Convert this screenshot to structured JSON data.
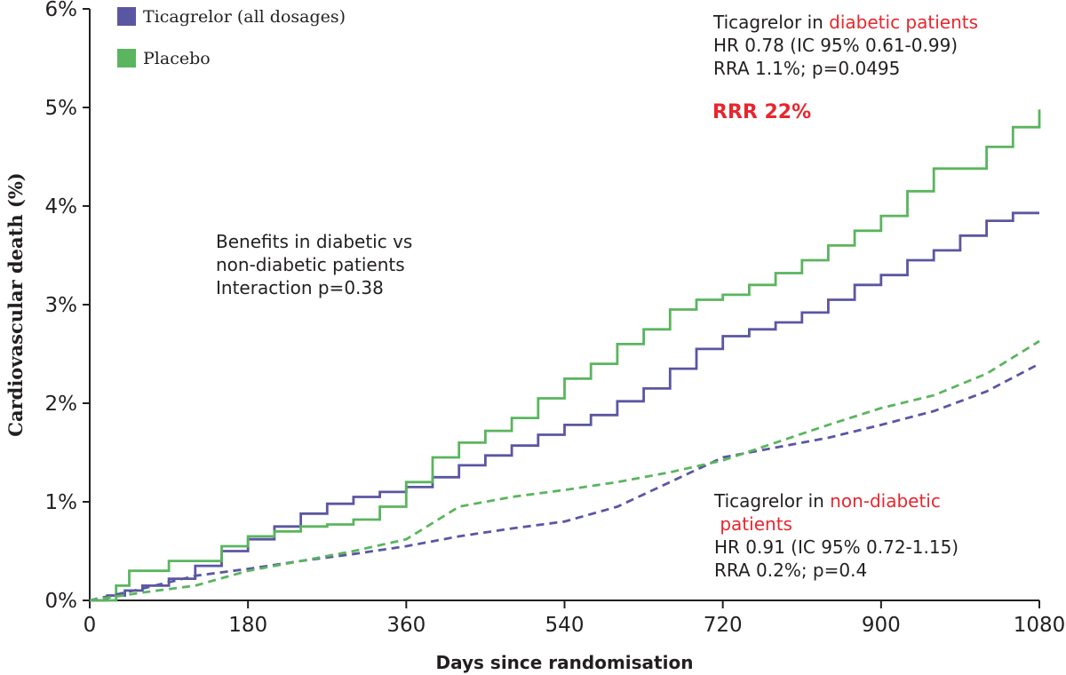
{
  "chart_data": {
    "type": "line",
    "title": "",
    "xlabel": "Days since randomisation",
    "ylabel": "Cardiovascular death (%)",
    "xlim": [
      0,
      1080
    ],
    "ylim": [
      0,
      6
    ],
    "x_ticks": [
      0,
      180,
      360,
      540,
      720,
      900,
      1080
    ],
    "x_tick_labels": [
      "0",
      "180",
      "360",
      "540",
      "720",
      "900",
      "1080"
    ],
    "y_ticks": [
      0,
      1,
      2,
      3,
      4,
      5,
      6
    ],
    "y_tick_labels": [
      "0%",
      "1%",
      "2%",
      "3%",
      "4%",
      "5%",
      "6%"
    ],
    "grid": false,
    "legend": {
      "position": "top-left",
      "entries": [
        {
          "label": "Ticagrelor (all dosages)",
          "color": "#5b56a2"
        },
        {
          "label": "Placebo",
          "color": "#5ab55e"
        }
      ]
    },
    "series": [
      {
        "name": "Ticagrelor (all dosages)",
        "group": "diabetic patients",
        "color": "#5b56a2",
        "style": "solid",
        "step": true,
        "x": [
          0,
          20,
          40,
          60,
          90,
          120,
          150,
          180,
          210,
          240,
          270,
          300,
          330,
          360,
          390,
          420,
          450,
          480,
          510,
          540,
          570,
          600,
          630,
          660,
          690,
          720,
          750,
          780,
          810,
          840,
          870,
          900,
          930,
          960,
          990,
          1020,
          1050,
          1080
        ],
        "y": [
          0,
          0.05,
          0.1,
          0.15,
          0.22,
          0.35,
          0.5,
          0.62,
          0.75,
          0.88,
          0.98,
          1.05,
          1.1,
          1.15,
          1.25,
          1.37,
          1.47,
          1.57,
          1.68,
          1.78,
          1.88,
          2.02,
          2.15,
          2.35,
          2.55,
          2.68,
          2.75,
          2.82,
          2.92,
          3.05,
          3.2,
          3.3,
          3.45,
          3.55,
          3.7,
          3.85,
          3.93,
          3.93
        ]
      },
      {
        "name": "Placebo",
        "group": "diabetic patients",
        "color": "#5ab55e",
        "style": "solid",
        "step": true,
        "x": [
          0,
          30,
          45,
          90,
          150,
          180,
          210,
          240,
          270,
          300,
          330,
          360,
          390,
          420,
          450,
          480,
          510,
          540,
          570,
          600,
          630,
          660,
          690,
          720,
          750,
          780,
          810,
          840,
          870,
          900,
          930,
          960,
          990,
          1020,
          1050,
          1080
        ],
        "y": [
          0,
          0.15,
          0.3,
          0.4,
          0.55,
          0.65,
          0.7,
          0.75,
          0.77,
          0.82,
          0.95,
          1.2,
          1.45,
          1.6,
          1.72,
          1.85,
          2.05,
          2.25,
          2.4,
          2.6,
          2.75,
          2.95,
          3.05,
          3.1,
          3.2,
          3.32,
          3.45,
          3.6,
          3.75,
          3.9,
          4.15,
          4.38,
          4.38,
          4.6,
          4.8,
          4.98
        ]
      },
      {
        "name": "Ticagrelor (all dosages)",
        "group": "non-diabetic patients",
        "color": "#5b56a2",
        "style": "dashed",
        "step": false,
        "x": [
          0,
          60,
          120,
          180,
          240,
          300,
          360,
          420,
          480,
          540,
          600,
          660,
          720,
          780,
          840,
          900,
          960,
          1020,
          1080
        ],
        "y": [
          0,
          0.12,
          0.25,
          0.32,
          0.4,
          0.47,
          0.55,
          0.65,
          0.73,
          0.8,
          0.95,
          1.2,
          1.45,
          1.55,
          1.65,
          1.78,
          1.92,
          2.12,
          2.4
        ]
      },
      {
        "name": "Placebo",
        "group": "non-diabetic patients",
        "color": "#5ab55e",
        "style": "dashed",
        "step": false,
        "x": [
          0,
          60,
          120,
          180,
          240,
          300,
          360,
          420,
          480,
          540,
          600,
          660,
          720,
          780,
          840,
          900,
          960,
          1020,
          1080
        ],
        "y": [
          0,
          0.08,
          0.15,
          0.3,
          0.4,
          0.5,
          0.62,
          0.95,
          1.05,
          1.12,
          1.2,
          1.3,
          1.42,
          1.6,
          1.78,
          1.95,
          2.08,
          2.3,
          2.63
        ]
      }
    ],
    "annotations": [
      {
        "id": "diabetic",
        "lines": [
          [
            {
              "text": "Ticagrelor in ",
              "color": "dark"
            },
            {
              "text": "diabetic patients",
              "color": "red"
            }
          ],
          [
            {
              "text": "HR 0.78 (IC 95% 0.61-0.99)",
              "color": "dark"
            }
          ],
          [
            {
              "text": "RRA 1.1%; p=0.0495",
              "color": "dark"
            }
          ]
        ]
      },
      {
        "id": "rrr",
        "lines": [
          [
            {
              "text": "RRR 22%",
              "color": "red",
              "bold": true
            }
          ]
        ]
      },
      {
        "id": "benefits",
        "lines": [
          [
            {
              "text": "Benefits in diabetic vs",
              "color": "dark"
            }
          ],
          [
            {
              "text": "non-diabetic patients",
              "color": "dark"
            }
          ],
          [
            {
              "text": "Interaction p=0.38",
              "color": "dark"
            }
          ]
        ]
      },
      {
        "id": "nondiabetic",
        "lines": [
          [
            {
              "text": "Ticagrelor in ",
              "color": "dark"
            },
            {
              "text": "non-diabetic",
              "color": "red"
            }
          ],
          [
            {
              "text": " patients",
              "color": "red"
            }
          ],
          [
            {
              "text": "HR 0.91 (IC 95% 0.72-1.15)",
              "color": "dark"
            }
          ],
          [
            {
              "text": "RRA 0.2%; p=0.4",
              "color": "dark"
            }
          ]
        ]
      }
    ]
  }
}
